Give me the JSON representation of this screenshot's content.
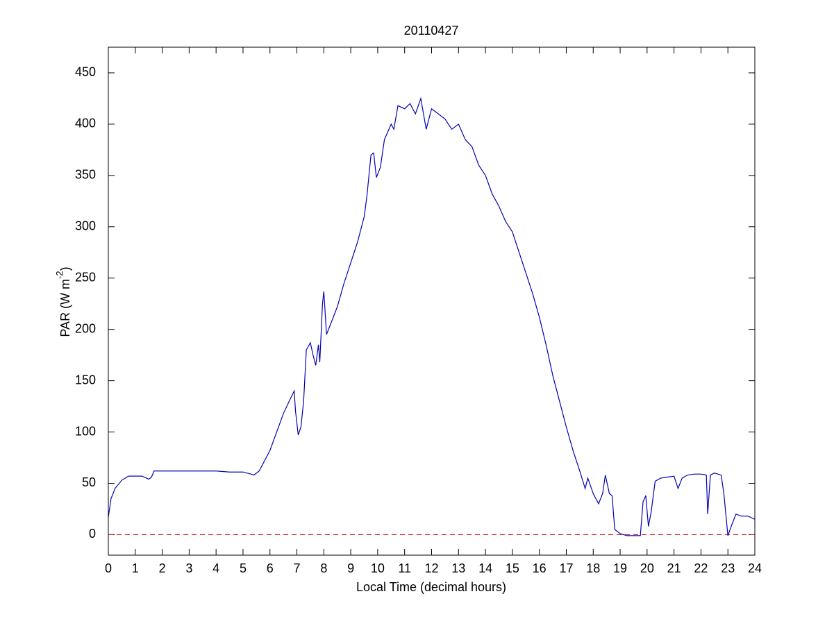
{
  "chart_data": {
    "type": "line",
    "title": "20110427",
    "xlabel": "Local Time (decimal hours)",
    "ylabel": {
      "text": "PAR (W m",
      "sup": "-2",
      "tail": ")"
    },
    "x": [
      0,
      0.1,
      0.25,
      0.5,
      0.75,
      1,
      1.25,
      1.5,
      1.6,
      1.7,
      2,
      2.5,
      3,
      3.5,
      4,
      4.5,
      5,
      5.3,
      5.4,
      5.6,
      5.8,
      6,
      6.25,
      6.5,
      6.75,
      6.9,
      6.95,
      7.05,
      7.15,
      7.25,
      7.35,
      7.5,
      7.6,
      7.7,
      7.8,
      7.85,
      7.95,
      8,
      8.1,
      8.25,
      8.5,
      8.75,
      9,
      9.25,
      9.5,
      9.6,
      9.75,
      9.85,
      9.95,
      10.1,
      10.25,
      10.5,
      10.6,
      10.75,
      11,
      11.2,
      11.4,
      11.6,
      11.8,
      12,
      12.25,
      12.5,
      12.75,
      13,
      13.25,
      13.5,
      13.75,
      14,
      14.25,
      14.5,
      14.75,
      15,
      15.25,
      15.5,
      15.75,
      16,
      16.25,
      16.5,
      16.75,
      17,
      17.25,
      17.5,
      17.7,
      17.8,
      18,
      18.2,
      18.35,
      18.45,
      18.6,
      18.7,
      18.8,
      19,
      19.25,
      19.5,
      19.75,
      19.85,
      19.95,
      20.05,
      20.15,
      20.3,
      20.5,
      20.75,
      21,
      21.15,
      21.3,
      21.5,
      21.75,
      22,
      22.2,
      22.25,
      22.35,
      22.5,
      22.75,
      22.85,
      23,
      23.15,
      23.3,
      23.5,
      23.75,
      24
    ],
    "series": [
      {
        "color": "#0000b4",
        "values": [
          17,
          35,
          45,
          53,
          57,
          57,
          57,
          54,
          56,
          62,
          62,
          62,
          62,
          62,
          62,
          61,
          61,
          59,
          58,
          62,
          72,
          82,
          100,
          118,
          132,
          140,
          120,
          97,
          105,
          130,
          180,
          187,
          175,
          165,
          185,
          168,
          225,
          237,
          195,
          205,
          222,
          245,
          265,
          285,
          310,
          330,
          370,
          372,
          348,
          358,
          385,
          400,
          395,
          418,
          415,
          420,
          410,
          425,
          395,
          415,
          410,
          405,
          395,
          400,
          385,
          378,
          360,
          350,
          332,
          320,
          305,
          295,
          275,
          255,
          235,
          212,
          185,
          155,
          130,
          105,
          82,
          62,
          45,
          55,
          40,
          30,
          40,
          58,
          40,
          38,
          5,
          1,
          -1,
          -1,
          -1,
          32,
          38,
          8,
          22,
          52,
          55,
          56,
          57,
          45,
          55,
          58,
          59,
          59,
          58,
          20,
          58,
          60,
          58,
          40,
          -1,
          10,
          20,
          18,
          18,
          15
        ]
      }
    ],
    "hline": {
      "value": 0,
      "color": "#d62728",
      "dashed": true
    },
    "xlim": [
      0,
      24
    ],
    "xticks": [
      0,
      1,
      2,
      3,
      4,
      5,
      6,
      7,
      8,
      9,
      10,
      11,
      12,
      13,
      14,
      15,
      16,
      17,
      18,
      19,
      20,
      21,
      22,
      23,
      24
    ],
    "ylim": [
      -20,
      475
    ],
    "yticks": [
      0,
      50,
      100,
      150,
      200,
      250,
      300,
      350,
      400,
      450
    ],
    "grid": false
  }
}
